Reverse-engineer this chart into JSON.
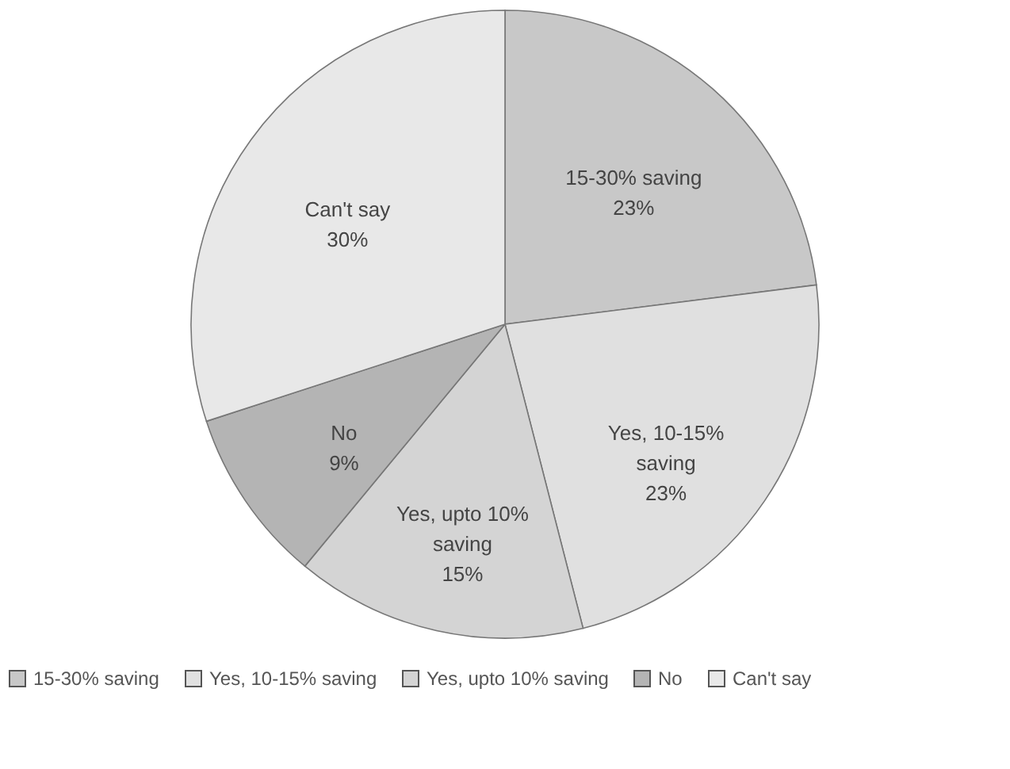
{
  "chart_data": {
    "type": "pie",
    "categories": [
      "15-30% saving",
      "Yes, 10-15% saving",
      "Yes, upto 10% saving",
      "No",
      "Can't say"
    ],
    "values": [
      23,
      23,
      15,
      9,
      30
    ],
    "value_labels": [
      "23%",
      "23%",
      "15%",
      "9%",
      "30%"
    ],
    "colors": [
      "#c8c8c8",
      "#e0e0e0",
      "#d4d4d4",
      "#b4b4b4",
      "#e8e8e8"
    ],
    "legend": "bottom"
  }
}
